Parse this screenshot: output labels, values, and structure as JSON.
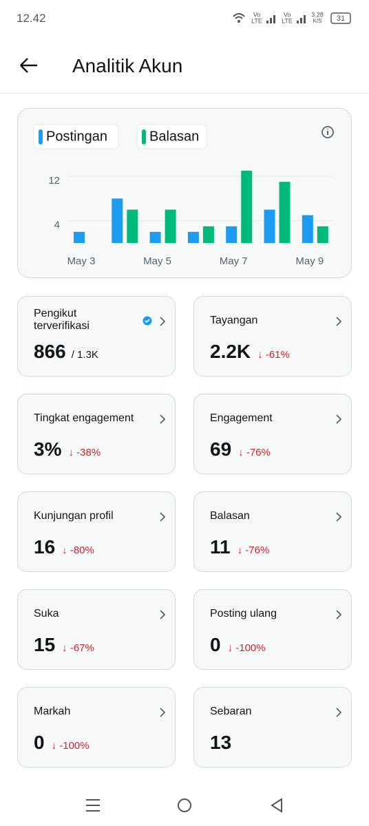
{
  "status": {
    "time": "12.42",
    "net": [
      "Vo",
      "LTE",
      "Vo",
      "LTE"
    ],
    "speed": "3.28",
    "speed_unit": "K/S",
    "battery": "31"
  },
  "header": {
    "title": "Analitik Akun"
  },
  "chart_data": {
    "type": "bar",
    "categories": [
      "May 3",
      null,
      "May 5",
      null,
      "May 7",
      null,
      "May 9"
    ],
    "series": [
      {
        "name": "Postingan",
        "color": "#1d9bf0",
        "values": [
          2,
          8,
          2,
          2,
          3,
          6,
          5
        ]
      },
      {
        "name": "Balasan",
        "color": "#00ba7c",
        "values": [
          0,
          6,
          6,
          3,
          13,
          11,
          3
        ]
      }
    ],
    "ylim": [
      0,
      13
    ],
    "yticks": [
      4,
      12
    ],
    "grid": true
  },
  "cards": [
    {
      "title": "Pengikut terverifikasi",
      "value": "866",
      "total": "/ 1.3K"
    },
    {
      "title": "Tayangan",
      "value": "2.2K",
      "change": "-61%"
    },
    {
      "title": "Tingkat engagement",
      "value": "3%",
      "change": "-38%"
    },
    {
      "title": "Engagement",
      "value": "69",
      "change": "-76%"
    },
    {
      "title": "Kunjungan profil",
      "value": "16",
      "change": "-80%"
    },
    {
      "title": "Balasan",
      "value": "11",
      "change": "-76%"
    },
    {
      "title": "Suka",
      "value": "15",
      "change": "-67%"
    },
    {
      "title": "Posting ulang",
      "value": "0",
      "change": "-100%"
    },
    {
      "title": "Markah",
      "value": "0",
      "change": "-100%"
    },
    {
      "title": "Sebaran",
      "value": "13"
    }
  ]
}
